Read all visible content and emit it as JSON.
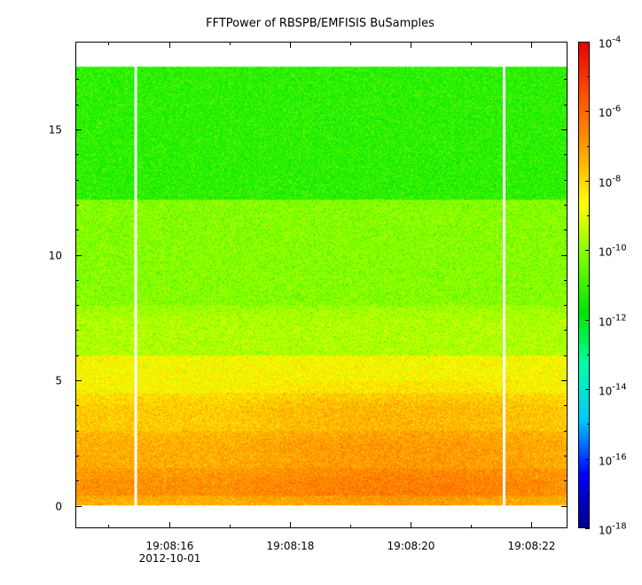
{
  "chart_data": {
    "type": "heatmap",
    "title": "FFTPower of RBSPB/EMFISIS  BuSamples",
    "xlabel": "",
    "ylabel": "",
    "x_axis": {
      "type": "time",
      "range_seconds": [
        "19:08:14.45",
        "19:08:22.60"
      ],
      "major_ticks": [
        {
          "time": "19:08:16",
          "label": "19:08:16",
          "sublabel": "2012-10-01"
        },
        {
          "time": "19:08:18",
          "label": "19:08:18",
          "sublabel": ""
        },
        {
          "time": "19:08:20",
          "label": "19:08:20",
          "sublabel": ""
        },
        {
          "time": "19:08:22",
          "label": "19:08:22",
          "sublabel": ""
        }
      ],
      "minor_ticks": [
        "19:08:15",
        "19:08:17",
        "19:08:19",
        "19:08:21"
      ]
    },
    "y_axis": {
      "range": [
        -0.9,
        18.5
      ],
      "ticks": [
        0,
        5,
        10,
        15
      ],
      "tick_labels": [
        "0",
        "5",
        "10",
        "15"
      ],
      "data_range": [
        0,
        17.5
      ]
    },
    "colorbar": {
      "scale": "log",
      "range": [
        1e-18,
        0.0001
      ],
      "tick_mantissa": "10",
      "ticks": [
        {
          "value": 0.0001,
          "exponent": "-4"
        },
        {
          "value": 1e-06,
          "exponent": "-6"
        },
        {
          "value": 1e-08,
          "exponent": "-8"
        },
        {
          "value": 1e-10,
          "exponent": "-10"
        },
        {
          "value": 1e-12,
          "exponent": "-12"
        },
        {
          "value": 1e-14,
          "exponent": "-14"
        },
        {
          "value": 1e-16,
          "exponent": "-16"
        },
        {
          "value": 1e-18,
          "exponent": "-18"
        }
      ],
      "palette": [
        "#00008c",
        "#0000ff",
        "#00c8ff",
        "#00ffaa",
        "#00e600",
        "#78ff00",
        "#ffff00",
        "#ffa000",
        "#ff5000",
        "#e60000"
      ]
    },
    "data_gaps_time": [
      "19:08:15.45",
      "19:08:21.55"
    ],
    "band_profile": [
      {
        "y_from": 0.0,
        "y_to": 0.4,
        "log10_power": -7.6
      },
      {
        "y_from": 0.4,
        "y_to": 1.5,
        "log10_power": -6.8
      },
      {
        "y_from": 1.5,
        "y_to": 3.0,
        "log10_power": -7.3
      },
      {
        "y_from": 3.0,
        "y_to": 4.5,
        "log10_power": -7.8
      },
      {
        "y_from": 4.5,
        "y_to": 6.0,
        "log10_power": -8.6
      },
      {
        "y_from": 6.0,
        "y_to": 8.0,
        "log10_power": -9.6
      },
      {
        "y_from": 8.0,
        "y_to": 12.2,
        "log10_power": -10.1
      },
      {
        "y_from": 12.2,
        "y_to": 17.5,
        "log10_power": -11.2
      }
    ],
    "grid": false,
    "legend": "colorbar-right"
  }
}
